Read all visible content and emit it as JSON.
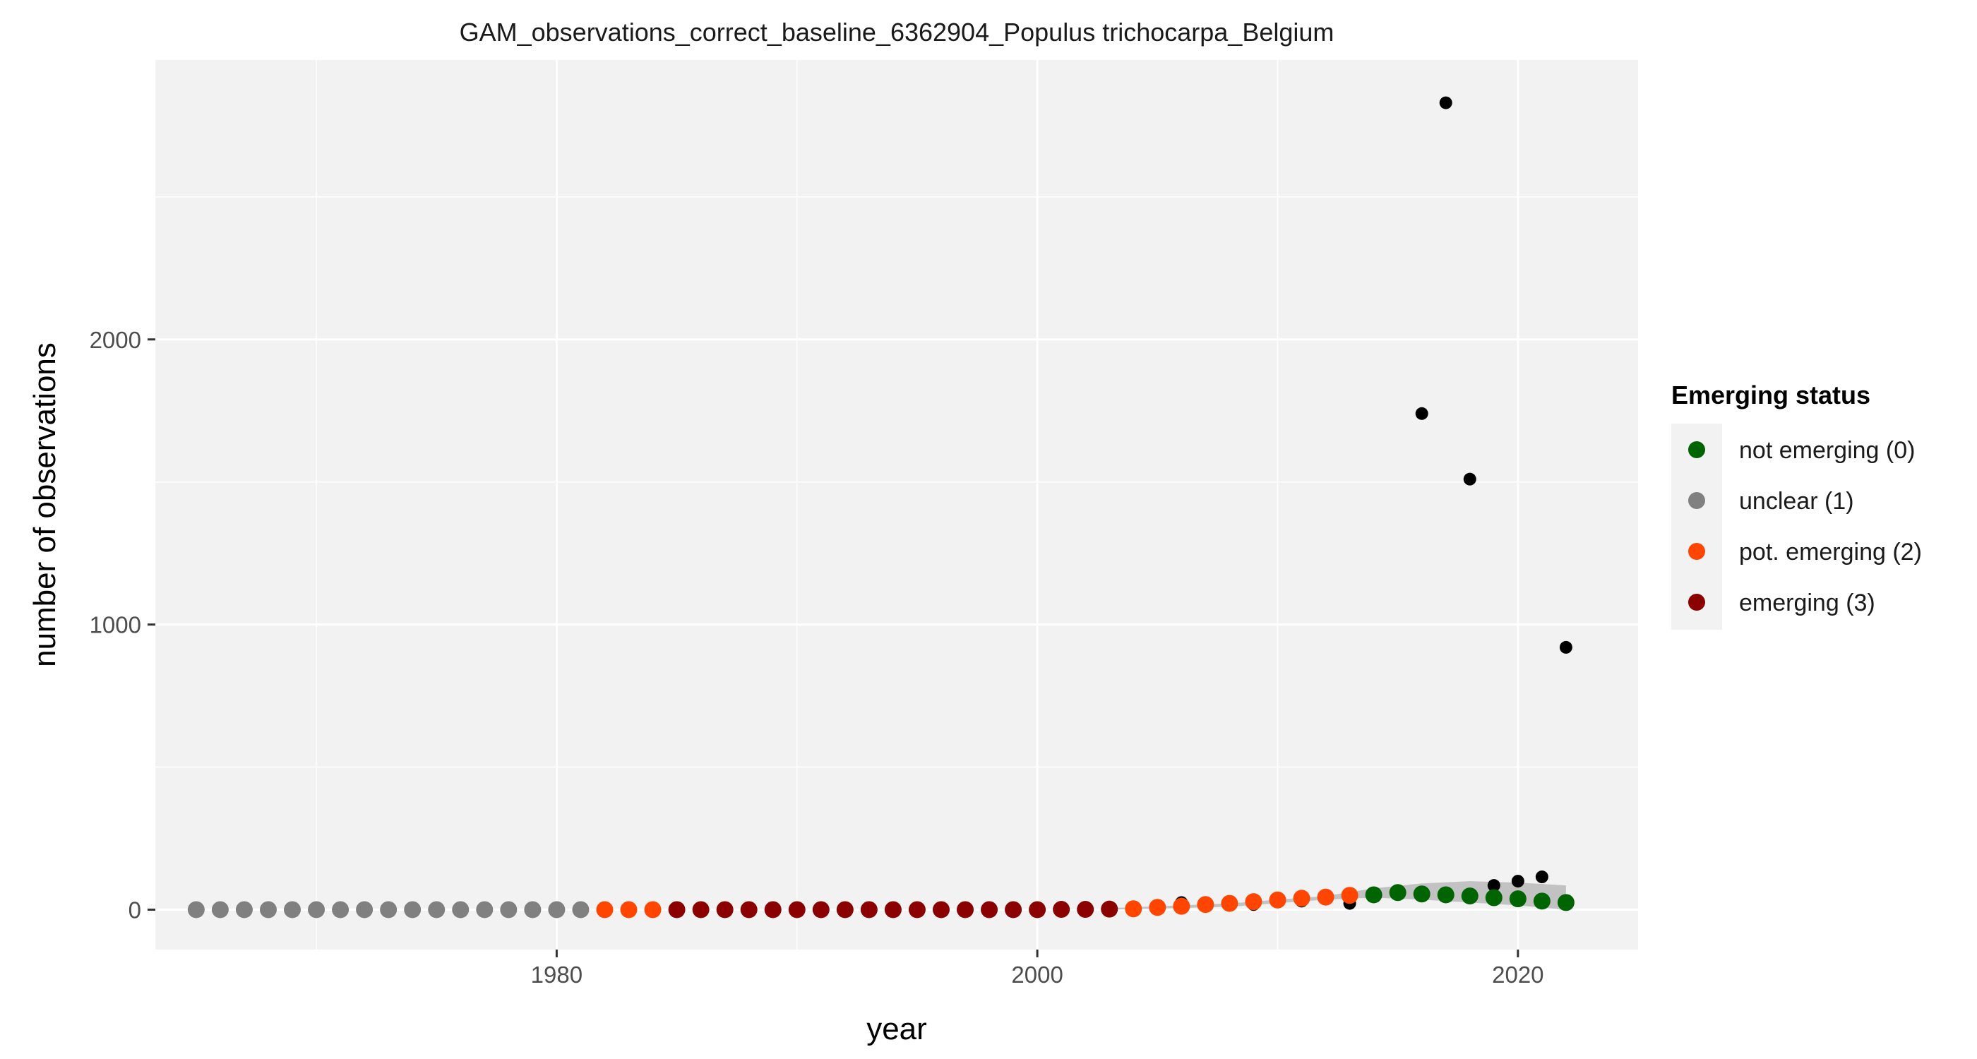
{
  "chart_data": {
    "type": "scatter",
    "title": "GAM_observations_correct_baseline_6362904_Populus trichocarpa_Belgium",
    "xlabel": "year",
    "ylabel": "number of observations",
    "xlim": [
      1963.3,
      2025.0
    ],
    "ylim": [
      -140,
      2980
    ],
    "x_ticks": [
      1980,
      2000,
      2020
    ],
    "x_minor": [
      1970,
      1990,
      2010
    ],
    "y_ticks": [
      0,
      1000,
      2000
    ],
    "y_minor": [
      500,
      1500,
      2500
    ],
    "grid": true,
    "legend": {
      "title": "Emerging status",
      "position": "right",
      "entries": [
        {
          "label": "not emerging (0)",
          "color": "#006400"
        },
        {
          "label": "unclear (1)",
          "color": "#808080"
        },
        {
          "label": "pot. emerging (2)",
          "color": "#ff4500"
        },
        {
          "label": "emerging (3)",
          "color": "#8b0000"
        }
      ]
    },
    "observations": {
      "name": "observed",
      "color": "#000000",
      "points": [
        [
          2006,
          25
        ],
        [
          2007,
          12
        ],
        [
          2008,
          20
        ],
        [
          2009,
          18
        ],
        [
          2010,
          30
        ],
        [
          2011,
          30
        ],
        [
          2012,
          45
        ],
        [
          2013,
          22
        ],
        [
          2016,
          1740
        ],
        [
          2017,
          2830
        ],
        [
          2018,
          1510
        ],
        [
          2019,
          85
        ],
        [
          2020,
          100
        ],
        [
          2021,
          115
        ],
        [
          2022,
          920
        ]
      ]
    },
    "ribbon": {
      "color": "#bdbdbd",
      "upper": [
        [
          2003,
          5
        ],
        [
          2008,
          22
        ],
        [
          2012,
          48
        ],
        [
          2014,
          75
        ],
        [
          2016,
          92
        ],
        [
          2018,
          100
        ],
        [
          2020,
          95
        ],
        [
          2022,
          85
        ]
      ],
      "lower": [
        [
          2003,
          0
        ],
        [
          2008,
          10
        ],
        [
          2012,
          35
        ],
        [
          2014,
          42
        ],
        [
          2016,
          35
        ],
        [
          2018,
          25
        ],
        [
          2020,
          15
        ],
        [
          2022,
          0
        ]
      ]
    },
    "fit": {
      "years": [
        1965,
        1966,
        1967,
        1968,
        1969,
        1970,
        1971,
        1972,
        1973,
        1974,
        1975,
        1976,
        1977,
        1978,
        1979,
        1980,
        1981,
        1982,
        1983,
        1984,
        1985,
        1986,
        1987,
        1988,
        1989,
        1990,
        1991,
        1992,
        1993,
        1994,
        1995,
        1996,
        1997,
        1998,
        1999,
        2000,
        2001,
        2002,
        2003,
        2004,
        2005,
        2006,
        2007,
        2008,
        2009,
        2010,
        2011,
        2012,
        2013,
        2014,
        2015,
        2016,
        2017,
        2018,
        2019,
        2020,
        2021,
        2022
      ],
      "values": [
        0,
        0,
        0,
        0,
        0,
        0,
        0,
        0,
        0,
        0,
        0,
        0,
        0,
        0,
        0,
        0,
        0,
        0,
        0,
        0,
        0,
        0,
        0,
        0,
        0,
        0,
        0,
        0,
        0,
        0,
        0,
        0,
        0,
        0,
        0,
        0,
        1,
        1,
        2,
        3,
        8,
        12,
        18,
        22,
        28,
        34,
        40,
        44,
        50,
        52,
        60,
        55,
        52,
        48,
        42,
        38,
        30,
        25
      ],
      "status": [
        1,
        1,
        1,
        1,
        1,
        1,
        1,
        1,
        1,
        1,
        1,
        1,
        1,
        1,
        1,
        1,
        1,
        2,
        2,
        2,
        3,
        3,
        3,
        3,
        3,
        3,
        3,
        3,
        3,
        3,
        3,
        3,
        3,
        3,
        3,
        3,
        3,
        3,
        3,
        2,
        2,
        2,
        2,
        2,
        2,
        2,
        2,
        2,
        2,
        0,
        0,
        0,
        0,
        0,
        0,
        0,
        0,
        0
      ]
    }
  }
}
